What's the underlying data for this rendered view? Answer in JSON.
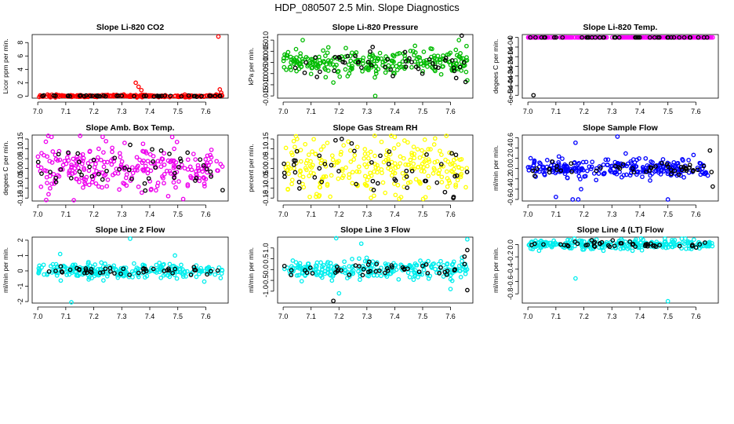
{
  "figure": {
    "title": "HDP_080507  2.5 Min. Slope Diagnostics"
  },
  "chart_data": [
    {
      "type": "scatter",
      "title": "Slope Li-820 CO2",
      "xlabel": "",
      "ylabel": "Licor ppm per min.",
      "xlim": [
        6.98,
        7.68
      ],
      "ylim": [
        -0.3,
        9.2
      ],
      "xticks": [
        7.0,
        7.1,
        7.2,
        7.3,
        7.4,
        7.5,
        7.6
      ],
      "xtick_labels": [
        "7.0",
        "7.1",
        "7.2",
        "7.3",
        "7.4",
        "7.5",
        "7.6"
      ],
      "yticks": [
        0,
        2,
        4,
        6,
        8
      ],
      "ytick_labels": [
        "0",
        "2",
        "4",
        "6",
        "8"
      ],
      "series": [
        {
          "name": "primary",
          "color": "#ff0000",
          "spread": 0.08,
          "base": 0.02,
          "outliers": [
            [
              7.35,
              2.0
            ],
            [
              7.36,
              1.4
            ],
            [
              7.37,
              0.9
            ],
            [
              7.645,
              8.9
            ],
            [
              7.65,
              1.0
            ],
            [
              7.655,
              0.5
            ]
          ]
        },
        {
          "name": "flagged",
          "color": "#000000",
          "spread": 0.05,
          "base": 0.02,
          "outliers": []
        }
      ]
    },
    {
      "type": "scatter",
      "title": "Slope Li-820 Pressure",
      "xlabel": "",
      "ylabel": "kPa per min.",
      "xlim": [
        6.98,
        7.68
      ],
      "ylim": [
        -0.016,
        0.0125
      ],
      "xticks": [
        7.0,
        7.1,
        7.2,
        7.3,
        7.4,
        7.5,
        7.6
      ],
      "xtick_labels": [
        "7.0",
        "7.1",
        "7.2",
        "7.3",
        "7.4",
        "7.5",
        "7.6"
      ],
      "yticks": [
        -0.015,
        -0.01,
        -0.005,
        0.0,
        0.005,
        0.01
      ],
      "ytick_labels": [
        "-0.015",
        "-0.010",
        "-0.005",
        "0.000",
        "0.005",
        "0.010"
      ],
      "series": [
        {
          "name": "primary",
          "color": "#00bb00",
          "spread": 0.0025,
          "base": 0.0,
          "outliers": [
            [
              7.07,
              0.01
            ],
            [
              7.18,
              -0.009
            ],
            [
              7.33,
              -0.015
            ],
            [
              7.63,
              0.01
            ],
            [
              7.66,
              -0.008
            ]
          ]
        },
        {
          "name": "flagged",
          "color": "#000000",
          "spread": 0.003,
          "base": 0.0,
          "outliers": [
            [
              7.64,
              0.012
            ],
            [
              7.62,
              -0.007
            ]
          ]
        }
      ]
    },
    {
      "type": "scatter",
      "title": "Slope Li-820 Temp.",
      "xlabel": "",
      "ylabel": "degees C per min.",
      "xlim": [
        6.98,
        7.68
      ],
      "ylim": [
        -0.00063,
        3e-05
      ],
      "xticks": [
        7.0,
        7.1,
        7.2,
        7.3,
        7.4,
        7.5,
        7.6
      ],
      "xtick_labels": [
        "7.0",
        "7.1",
        "7.2",
        "7.3",
        "7.4",
        "7.5",
        "7.6"
      ],
      "yticks": [
        0.0,
        -0.0001,
        -0.0002,
        -0.0003,
        -0.0004,
        -0.0005,
        -0.0006
      ],
      "ytick_labels": [
        "0",
        "-1e-04",
        "-2e-04",
        "-3e-04",
        "-4e-04",
        "-5e-04",
        "-6e-04"
      ],
      "series": [
        {
          "name": "primary",
          "color": "#ff00ff",
          "spread": 0.0,
          "base": 0.0,
          "outliers": []
        },
        {
          "name": "flagged",
          "color": "#000000",
          "spread": 0.0,
          "base": 0.0,
          "outliers": [
            [
              7.02,
              -0.0006
            ]
          ]
        }
      ]
    },
    {
      "type": "scatter",
      "title": "Slope Amb. Box Temp.",
      "xlabel": "",
      "ylabel": "degees C per min.",
      "xlim": [
        6.98,
        7.68
      ],
      "ylim": [
        -0.165,
        0.17
      ],
      "xticks": [
        7.0,
        7.1,
        7.2,
        7.3,
        7.4,
        7.5,
        7.6
      ],
      "xtick_labels": [
        "7.0",
        "7.1",
        "7.2",
        "7.3",
        "7.4",
        "7.5",
        "7.6"
      ],
      "yticks": [
        -0.15,
        -0.1,
        -0.05,
        0.0,
        0.05,
        0.1,
        0.15
      ],
      "ytick_labels": [
        "-0.15",
        "-0.10",
        "-0.05",
        "0.00",
        "0.05",
        "0.10",
        "0.15"
      ],
      "series": [
        {
          "name": "primary",
          "color": "#ee00ee",
          "spread": 0.06,
          "base": 0.0,
          "outliers": [
            [
              7.48,
              0.16
            ],
            [
              7.03,
              -0.16
            ],
            [
              7.31,
              0.13
            ]
          ]
        },
        {
          "name": "flagged",
          "color": "#000000",
          "spread": 0.05,
          "base": 0.0,
          "outliers": [
            [
              7.33,
              0.12
            ],
            [
              7.66,
              -0.11
            ]
          ]
        }
      ]
    },
    {
      "type": "scatter",
      "title": "Slope Gas Stream RH",
      "xlabel": "",
      "ylabel": "percent per min.",
      "xlim": [
        6.98,
        7.68
      ],
      "ylim": [
        -0.165,
        0.17
      ],
      "xticks": [
        7.0,
        7.1,
        7.2,
        7.3,
        7.4,
        7.5,
        7.6
      ],
      "xtick_labels": [
        "7.0",
        "7.1",
        "7.2",
        "7.3",
        "7.4",
        "7.5",
        "7.6"
      ],
      "yticks": [
        -0.15,
        -0.1,
        -0.05,
        0.0,
        0.05,
        0.1,
        0.15
      ],
      "ytick_labels": [
        "-0.15",
        "-0.10",
        "-0.05",
        "0.00",
        "0.05",
        "0.10",
        "0.15"
      ],
      "series": [
        {
          "name": "primary",
          "color": "#ffff00",
          "spread": 0.065,
          "base": 0.0,
          "outliers": [
            [
              7.05,
              0.15
            ],
            [
              7.4,
              0.16
            ],
            [
              7.12,
              -0.13
            ]
          ]
        },
        {
          "name": "flagged",
          "color": "#000000",
          "spread": 0.06,
          "base": 0.0,
          "outliers": [
            [
              7.21,
              0.15
            ],
            [
              7.61,
              -0.15
            ],
            [
              7.58,
              -0.12
            ]
          ]
        }
      ]
    },
    {
      "type": "scatter",
      "title": "Slope Sample Flow",
      "xlabel": "",
      "ylabel": "ml/min per min.",
      "xlim": [
        6.98,
        7.68
      ],
      "ylim": [
        -0.63,
        0.65
      ],
      "xticks": [
        7.0,
        7.1,
        7.2,
        7.3,
        7.4,
        7.5,
        7.6
      ],
      "xtick_labels": [
        "7.0",
        "7.1",
        "7.2",
        "7.3",
        "7.4",
        "7.5",
        "7.6"
      ],
      "yticks": [
        -0.6,
        -0.4,
        -0.2,
        0.0,
        0.2,
        0.4,
        0.6
      ],
      "ytick_labels": [
        "-0.6",
        "-0.4",
        "-0.2",
        "0.0",
        "0.2",
        "0.4",
        "0.6"
      ],
      "series": [
        {
          "name": "primary",
          "color": "#0000ff",
          "spread": 0.09,
          "base": 0.0,
          "outliers": [
            [
              7.17,
              0.5
            ],
            [
              7.32,
              0.62
            ],
            [
              7.1,
              -0.55
            ],
            [
              7.16,
              -0.6
            ],
            [
              7.18,
              -0.6
            ],
            [
              7.5,
              -0.6
            ],
            [
              7.19,
              -0.4
            ]
          ]
        },
        {
          "name": "flagged",
          "color": "#000000",
          "spread": 0.06,
          "base": 0.0,
          "outliers": [
            [
              7.66,
              -0.35
            ],
            [
              7.65,
              0.35
            ]
          ]
        }
      ]
    },
    {
      "type": "scatter",
      "title": "Slope Line 2 Flow",
      "xlabel": "",
      "ylabel": "ml/min per min.",
      "xlim": [
        6.98,
        7.68
      ],
      "ylim": [
        -2.1,
        2.2
      ],
      "xticks": [
        7.0,
        7.1,
        7.2,
        7.3,
        7.4,
        7.5,
        7.6
      ],
      "xtick_labels": [
        "7.0",
        "7.1",
        "7.2",
        "7.3",
        "7.4",
        "7.5",
        "7.6"
      ],
      "yticks": [
        -2,
        -1,
        0,
        1,
        2
      ],
      "ytick_labels": [
        "-2",
        "-1",
        "0",
        "1",
        "2"
      ],
      "series": [
        {
          "name": "primary",
          "color": "#00eeee",
          "spread": 0.25,
          "base": 0.0,
          "outliers": [
            [
              7.12,
              -2.05
            ],
            [
              7.33,
              2.1
            ],
            [
              7.08,
              1.1
            ],
            [
              7.49,
              1.0
            ]
          ]
        },
        {
          "name": "flagged",
          "color": "#000000",
          "spread": 0.15,
          "base": 0.0,
          "outliers": []
        }
      ]
    },
    {
      "type": "scatter",
      "title": "Slope Line 3 Flow",
      "xlabel": "",
      "ylabel": "ml/min per min.",
      "xlim": [
        6.98,
        7.68
      ],
      "ylim": [
        -1.55,
        1.5
      ],
      "xticks": [
        7.0,
        7.1,
        7.2,
        7.3,
        7.4,
        7.5,
        7.6
      ],
      "xtick_labels": [
        "7.0",
        "7.1",
        "7.2",
        "7.3",
        "7.4",
        "7.5",
        "7.6"
      ],
      "yticks": [
        -1.0,
        -0.5,
        0.0,
        0.5,
        1.0
      ],
      "ytick_labels": [
        "-1.0",
        "-0.5",
        "0.0",
        "0.5",
        "1.0"
      ],
      "series": [
        {
          "name": "primary",
          "color": "#00eeee",
          "spread": 0.2,
          "base": 0.0,
          "outliers": [
            [
              7.19,
              1.45
            ],
            [
              7.28,
              1.2
            ],
            [
              7.66,
              1.4
            ],
            [
              7.2,
              -1.1
            ],
            [
              7.6,
              -0.9
            ]
          ]
        },
        {
          "name": "flagged",
          "color": "#000000",
          "spread": 0.15,
          "base": 0.0,
          "outliers": [
            [
              7.18,
              -1.45
            ],
            [
              7.66,
              0.9
            ],
            [
              7.66,
              -0.95
            ],
            [
              7.65,
              0.6
            ]
          ]
        }
      ]
    },
    {
      "type": "scatter",
      "title": "Slope Line 4 (LT) Flow",
      "xlabel": "",
      "ylabel": "ml/min per min.",
      "xlim": [
        6.98,
        7.68
      ],
      "ylim": [
        -0.95,
        0.12
      ],
      "xticks": [
        7.0,
        7.1,
        7.2,
        7.3,
        7.4,
        7.5,
        7.6
      ],
      "xtick_labels": [
        "7.0",
        "7.1",
        "7.2",
        "7.3",
        "7.4",
        "7.5",
        "7.6"
      ],
      "yticks": [
        0.0,
        -0.2,
        -0.4,
        -0.6,
        -0.8
      ],
      "ytick_labels": [
        "0.0",
        "-0.2",
        "-0.4",
        "-0.6",
        "-0.8"
      ],
      "series": [
        {
          "name": "primary",
          "color": "#00eeee",
          "spread": 0.04,
          "base": 0.0,
          "outliers": [
            [
              7.17,
              -0.55
            ],
            [
              7.5,
              -0.92
            ],
            [
              7.04,
              -0.1
            ],
            [
              7.2,
              -0.08
            ]
          ]
        },
        {
          "name": "flagged",
          "color": "#000000",
          "spread": 0.03,
          "base": 0.0,
          "outliers": []
        }
      ]
    }
  ]
}
